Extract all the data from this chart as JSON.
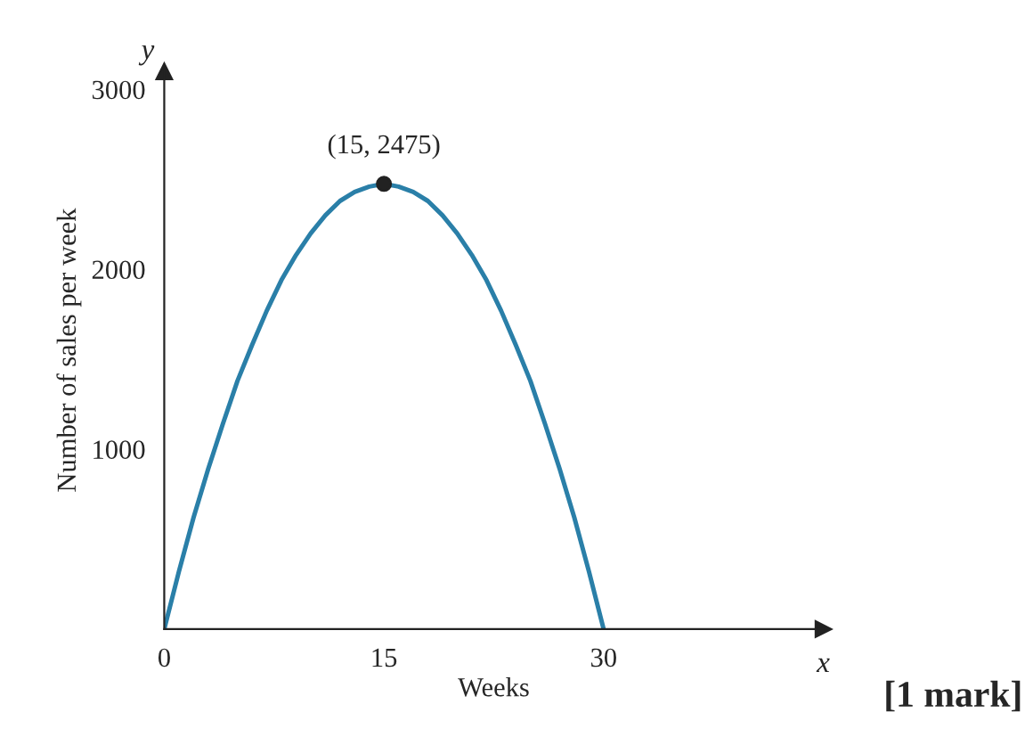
{
  "chart_data": {
    "type": "line",
    "xlabel": "Weeks",
    "ylabel": "Number of sales per week",
    "xlim": [
      0,
      45
    ],
    "ylim": [
      0,
      3100
    ],
    "xticks": [
      0,
      15,
      30
    ],
    "yticks": [
      1000,
      2000,
      3000
    ],
    "grid": false,
    "marker": "none",
    "line_style": "solid",
    "series": [
      {
        "color": "#2a7fa8",
        "x": [
          0,
          1,
          2,
          3,
          4,
          5,
          6,
          7,
          8,
          9,
          10,
          11,
          12,
          13,
          14,
          15,
          16,
          17,
          18,
          19,
          20,
          21,
          22,
          23,
          24,
          25,
          26,
          27,
          28,
          29,
          30
        ],
        "values": [
          0,
          320,
          620,
          890,
          1140,
          1380,
          1580,
          1770,
          1940,
          2080,
          2200,
          2300,
          2380,
          2430,
          2460,
          2475,
          2460,
          2430,
          2380,
          2300,
          2200,
          2080,
          1940,
          1770,
          1580,
          1380,
          1140,
          890,
          620,
          320,
          0
        ]
      },
      {
        "type": "scatter",
        "color": "#222222",
        "marker": "circle",
        "x": [
          15
        ],
        "values": [
          2475
        ]
      }
    ],
    "annotations": [
      {
        "text": "(15, 2475)",
        "x": 15,
        "y": 2475
      },
      "y",
      "x",
      "[1 mark]"
    ]
  }
}
